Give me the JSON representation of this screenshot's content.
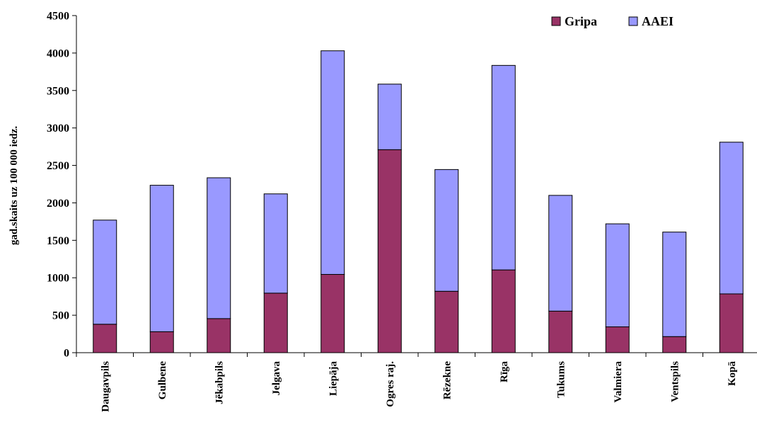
{
  "chart_data": {
    "type": "bar",
    "stacked": true,
    "ylabel": "gad.skaits uz 100 000 iedz.",
    "xlabel": "",
    "ylim": [
      0,
      4500
    ],
    "yticks": [
      0,
      500,
      1000,
      1500,
      2000,
      2500,
      3000,
      3500,
      4000,
      4500
    ],
    "grid": false,
    "legend_position": "top-right",
    "categories": [
      "Daugavpils",
      "Gulbene",
      "Jēkabpils",
      "Jelgava",
      "Liepāja",
      "Ogres raj.",
      "Rēzekne",
      "Rīga",
      "Tukums",
      "Valmiera",
      "Ventspils",
      "Kopā"
    ],
    "series": [
      {
        "name": "Gripa",
        "color": "#993366",
        "values": [
          380,
          280,
          455,
          795,
          1045,
          2710,
          820,
          1105,
          555,
          345,
          215,
          785
        ]
      },
      {
        "name": "AAEI",
        "color": "#9999ff",
        "values": [
          1390,
          1955,
          1880,
          1325,
          2985,
          875,
          1625,
          2730,
          1545,
          1375,
          1395,
          2025
        ]
      }
    ]
  }
}
